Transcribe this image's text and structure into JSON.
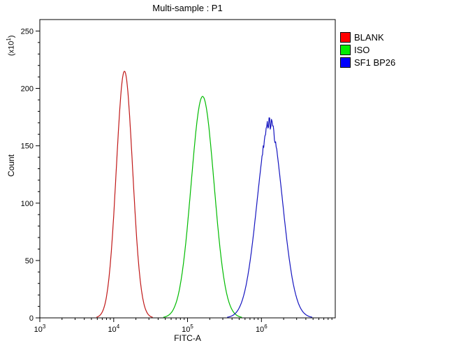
{
  "title": "Multi-sample : P1",
  "y_axis": {
    "label": "Count",
    "mult_prefix": "(x10",
    "mult_exp": "1",
    "mult_suffix": ")",
    "ticks": [
      0,
      50,
      100,
      150,
      200,
      250
    ],
    "minor_step": 10,
    "display_max": 260
  },
  "x_axis": {
    "label": "FITC-A",
    "base": "10",
    "exponents": [
      3,
      4,
      5,
      6
    ],
    "log_min": 3,
    "log_max": 7
  },
  "legend": {
    "items": [
      {
        "label": "BLANK",
        "color": "#ff0000"
      },
      {
        "label": "ISO",
        "color": "#00ee00"
      },
      {
        "label": "SF1 BP26",
        "color": "#0000ff"
      }
    ]
  },
  "chart_data": {
    "type": "line",
    "title": "Multi-sample : P1",
    "xlabel": "FITC-A",
    "ylabel": "Count (x10^1)",
    "x_scale": "log10",
    "xlim": [
      1000,
      10000000
    ],
    "ylim": [
      0,
      250
    ],
    "grid": false,
    "legend_position": "top-right",
    "series": [
      {
        "name": "BLANK",
        "color": "#c01818",
        "peak_x": 14000,
        "peak_y": 215,
        "sigma_log10": 0.11,
        "noisy_top": false
      },
      {
        "name": "ISO",
        "color": "#00bb00",
        "peak_x": 160000,
        "peak_y": 193,
        "sigma_log10": 0.155,
        "noisy_top": false
      },
      {
        "name": "SF1 BP26",
        "color": "#1515c0",
        "peak_x": 1300000,
        "peak_y": 170,
        "sigma_log10": 0.17,
        "noisy_top": true
      }
    ]
  }
}
